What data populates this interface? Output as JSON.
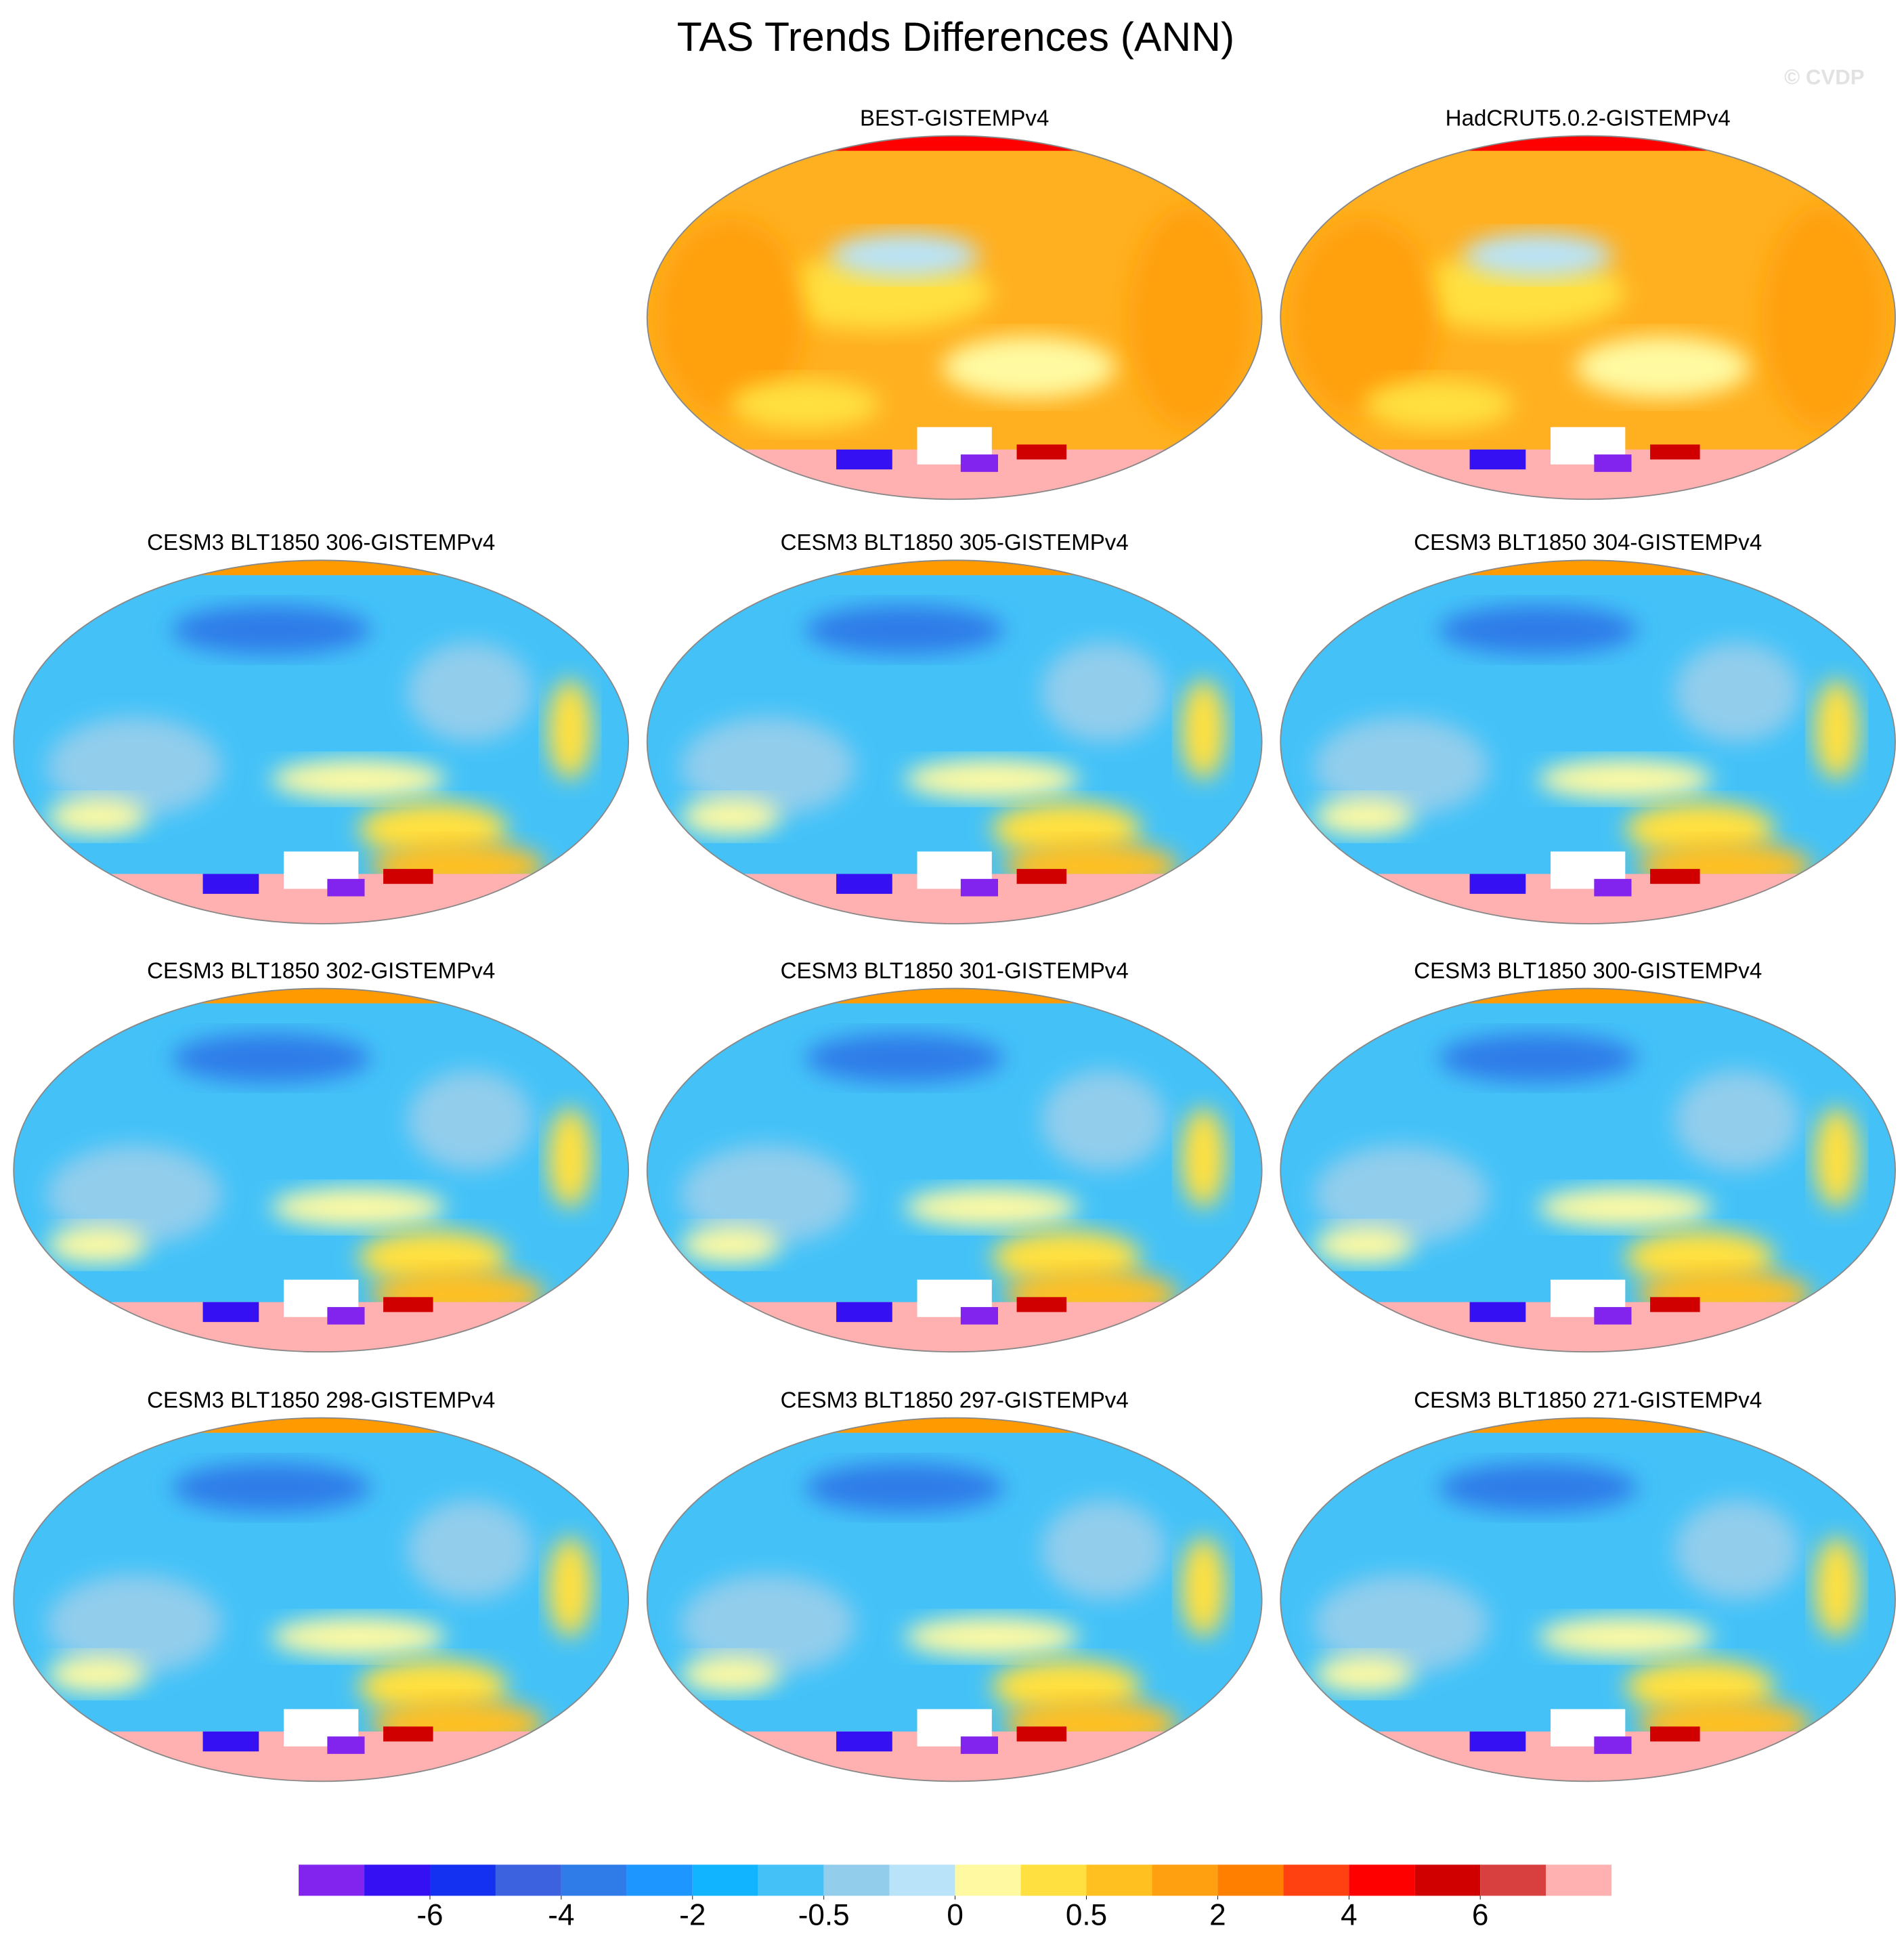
{
  "title": "TAS Trends Differences (ANN)",
  "watermark": "© CVDP",
  "panels": [
    {
      "title": "BEST-GISTEMPv4"
    },
    {
      "title": "HadCRUT5.0.2-GISTEMPv4"
    },
    {
      "title": "CESM3 BLT1850 306-GISTEMPv4"
    },
    {
      "title": "CESM3 BLT1850 305-GISTEMPv4"
    },
    {
      "title": "CESM3 BLT1850 304-GISTEMPv4"
    },
    {
      "title": "CESM3 BLT1850 302-GISTEMPv4"
    },
    {
      "title": "CESM3 BLT1850 301-GISTEMPv4"
    },
    {
      "title": "CESM3 BLT1850 300-GISTEMPv4"
    },
    {
      "title": "CESM3 BLT1850 298-GISTEMPv4"
    },
    {
      "title": "CESM3 BLT1850 297-GISTEMPv4"
    },
    {
      "title": "CESM3 BLT1850 271-GISTEMPv4"
    }
  ],
  "colorbar": {
    "colors": [
      "#8224ee",
      "#3410f2",
      "#1430f0",
      "#3c62e0",
      "#2f7be8",
      "#1e96ff",
      "#10b4ff",
      "#44c2f8",
      "#92cdec",
      "#b9e3f8",
      "#fffaa2",
      "#ffe040",
      "#ffc020",
      "#ffa010",
      "#ff7f00",
      "#ff4010",
      "#ff0000",
      "#d00000",
      "#d84040",
      "#ffb0b0"
    ],
    "ticks": [
      -6,
      -4,
      -2,
      -0.5,
      0,
      0.5,
      2,
      4,
      6
    ]
  }
}
